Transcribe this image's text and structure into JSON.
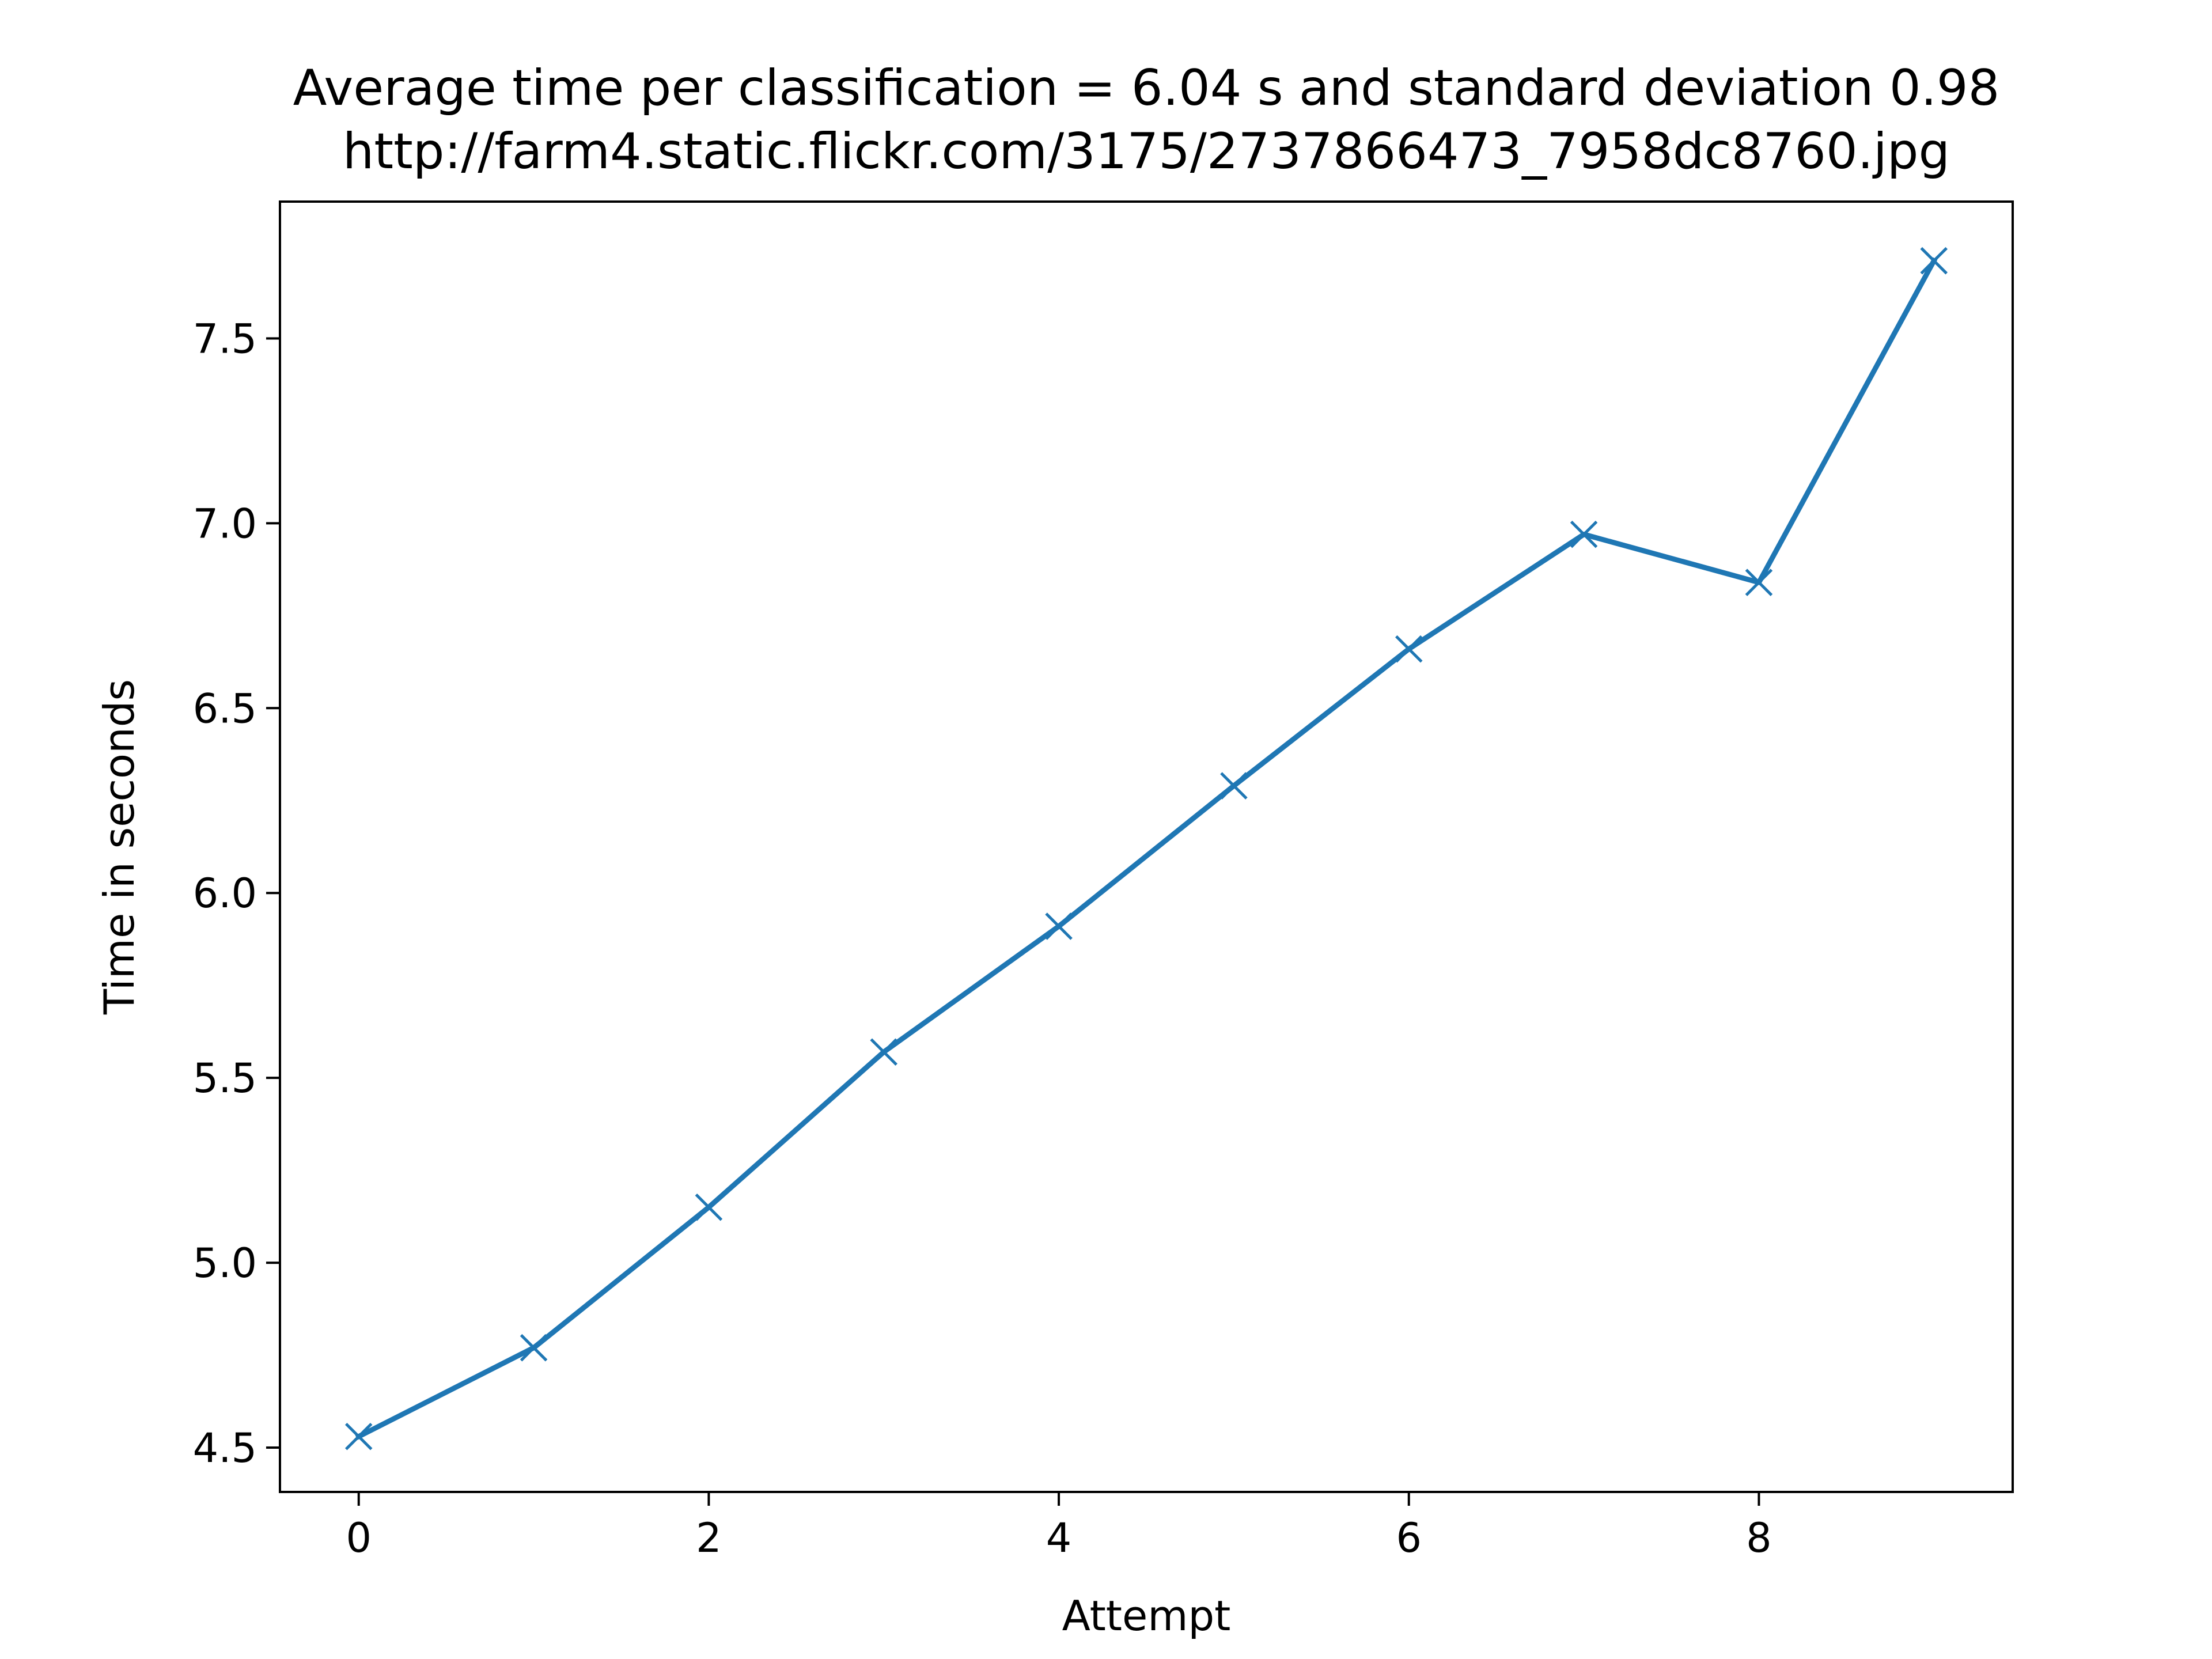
{
  "chart_data": {
    "type": "line",
    "title": "Average time per classification = 6.04 s and standard deviation 0.98",
    "subtitle": "http://farm4.static.flickr.com/3175/2737866473_7958dc8760.jpg",
    "xlabel": "Attempt",
    "ylabel": "Time in seconds",
    "xlim": [
      -0.45,
      9.45
    ],
    "ylim": [
      4.38,
      7.87
    ],
    "x_ticks": [
      0,
      2,
      4,
      6,
      8
    ],
    "x_tick_labels": [
      "0",
      "2",
      "4",
      "6",
      "8"
    ],
    "y_ticks": [
      4.5,
      5.0,
      5.5,
      6.0,
      6.5,
      7.0,
      7.5
    ],
    "y_tick_labels": [
      "4.5",
      "5.0",
      "5.5",
      "6.0",
      "6.5",
      "7.0",
      "7.5"
    ],
    "grid": false,
    "marker": "x",
    "color": "#1f77b4",
    "x": [
      0,
      1,
      2,
      3,
      4,
      5,
      6,
      7,
      8,
      9
    ],
    "y": [
      4.53,
      4.77,
      5.15,
      5.57,
      5.91,
      6.29,
      6.66,
      6.97,
      6.84,
      7.71
    ]
  }
}
